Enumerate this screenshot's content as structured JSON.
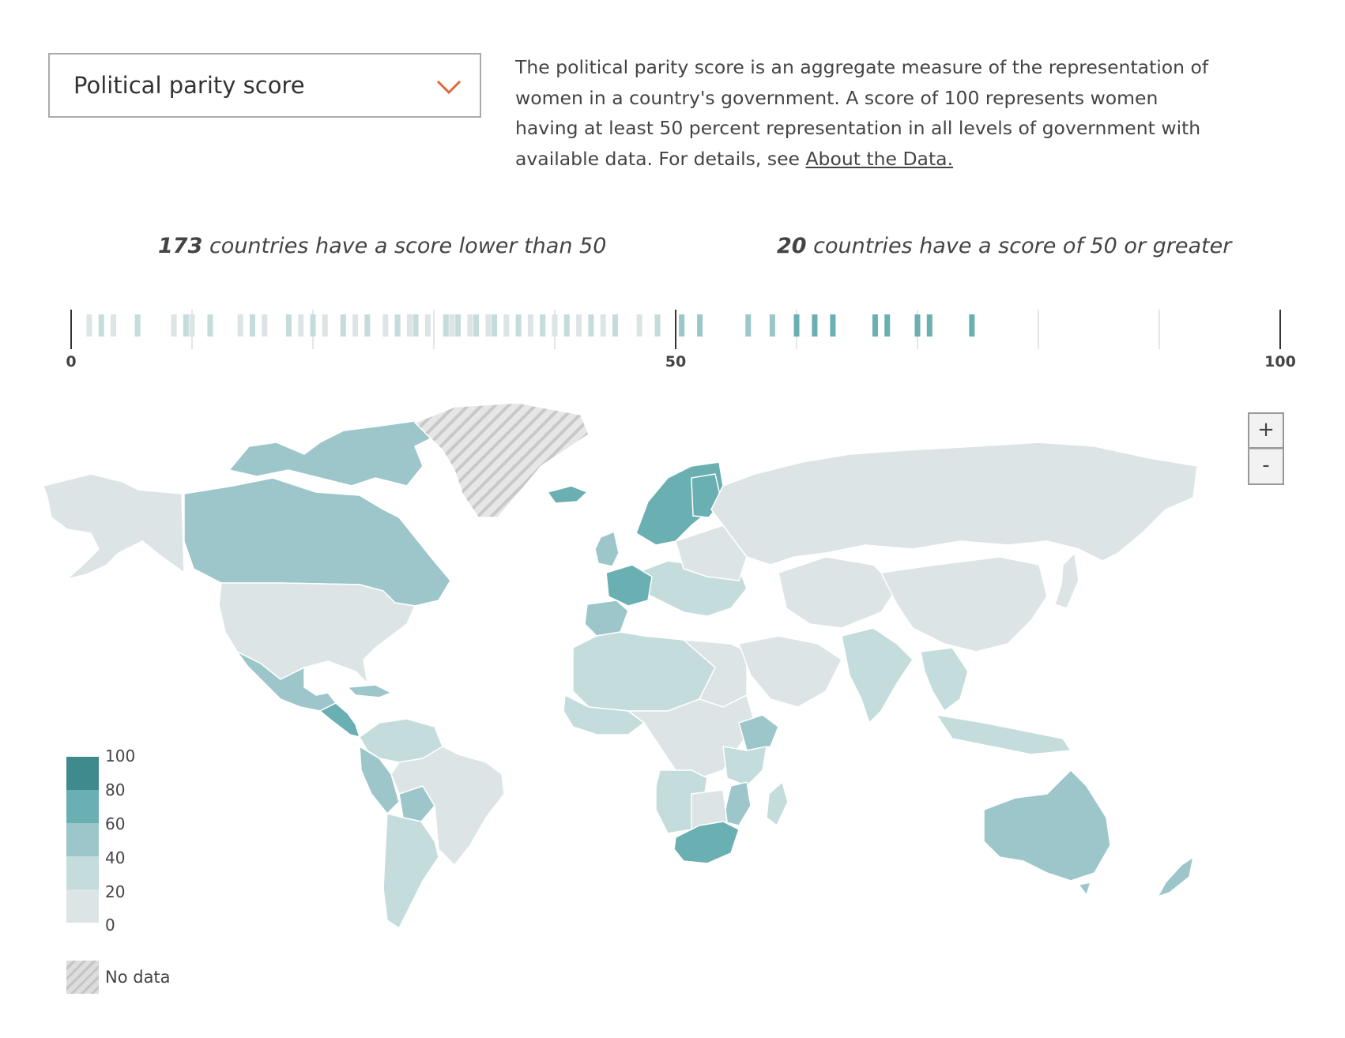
{
  "dropdown": {
    "selected": "Political parity score",
    "chevron_icon": "chevron-down-icon",
    "chevron_color": "#e0673a"
  },
  "description": {
    "text": "The political parity score is an aggregate measure of the representation of women in a country's government. A score of 100 represents women having at least 50 percent representation in all levels of government with available data. For details, see ",
    "link": "About the Data."
  },
  "summary_left": {
    "count": "173",
    "text": " countries have a score lower than 50"
  },
  "summary_right": {
    "count": "20",
    "text": " countries have a score of 50 or greater"
  },
  "zoom": {
    "in_label": "+",
    "out_label": "-"
  },
  "legend": {
    "steps": [
      {
        "label": "100",
        "color": "#3f8a8a"
      },
      {
        "label": "80",
        "color": "#6aafb2"
      },
      {
        "label": "60",
        "color": "#9cc6ca"
      },
      {
        "label": "40",
        "color": "#c4dcdc"
      },
      {
        "label": "20",
        "color": "#dce4e5"
      },
      {
        "label": "0",
        "color": null
      }
    ],
    "no_data_label": "No data",
    "no_data_color": "#dddddd"
  },
  "chart_data": {
    "type": "strip",
    "axis": {
      "min": 0,
      "max": 100,
      "ticks": [
        "0",
        "50",
        "100"
      ],
      "minor_ticks": [
        10,
        20,
        30,
        40,
        60,
        70,
        80,
        90
      ]
    },
    "scores": [
      1.5,
      2.5,
      3.5,
      5.5,
      8.5,
      9.5,
      10,
      11.5,
      14,
      15,
      16,
      18,
      19,
      20,
      21,
      22.5,
      23.5,
      24.5,
      26,
      27,
      28,
      28.5,
      29.5,
      31,
      31.5,
      32,
      33,
      33.5,
      34.5,
      35,
      36,
      37,
      38,
      39,
      40,
      41,
      42,
      43,
      44,
      45,
      47,
      48.5,
      50.5,
      52,
      56,
      58,
      60,
      61.5,
      63,
      66.5,
      67.5,
      70,
      71,
      74.5
    ],
    "colors": {
      "below_50": [
        "#dce4e5",
        "#c4dcdc"
      ],
      "50_to_60": "#9cc6ca",
      "60_to_80": "#6aafb2"
    }
  },
  "map": {
    "colors": {
      "base": "#dce4e5",
      "light": "#c4dcdc",
      "mid": "#9cc6ca",
      "strong": "#6aafb2",
      "darkest": "#3f8a8a",
      "no_data": "#dddddd"
    }
  }
}
